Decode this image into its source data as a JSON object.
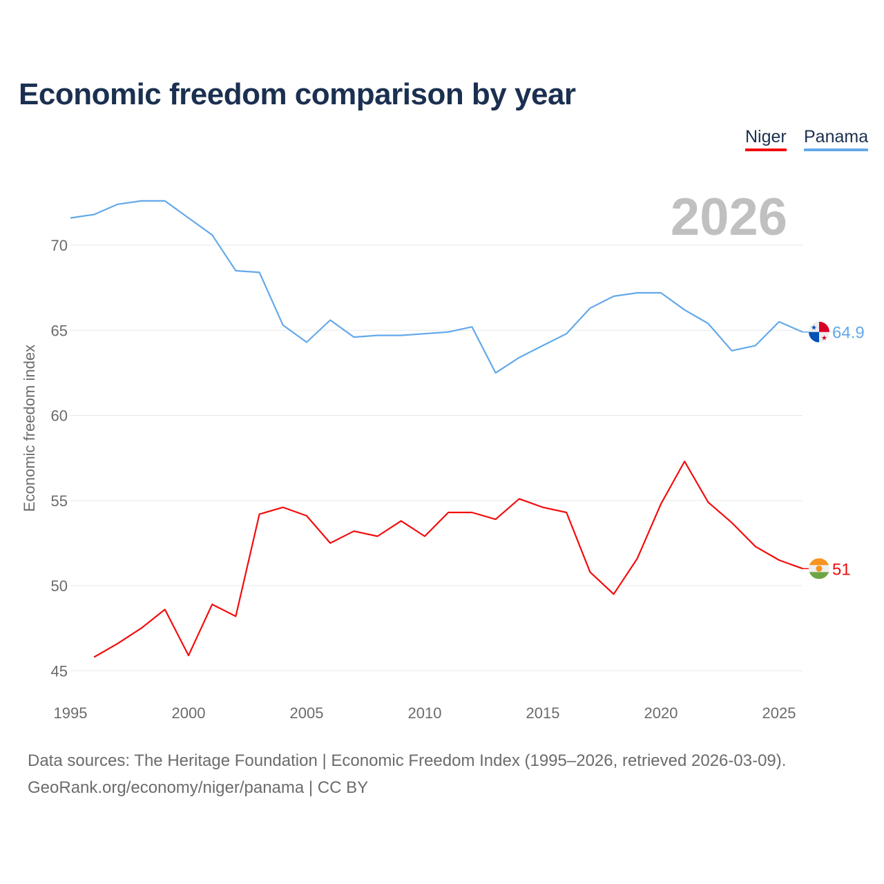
{
  "title": "Economic freedom comparison by year",
  "footer": {
    "line1": "Data sources: The Heritage Foundation | Economic Freedom Index (1995–2026, retrieved 2026-03-09).",
    "line2": "GeoRank.org/economy/niger/panama | CC BY"
  },
  "chart_data": {
    "type": "line",
    "title": "Economic freedom comparison by year",
    "xlabel": "",
    "ylabel": "Economic freedom index",
    "year_label": "2026",
    "xlim": [
      1995,
      2026
    ],
    "ylim": [
      45,
      72.8
    ],
    "xticks": [
      1995,
      2000,
      2005,
      2010,
      2015,
      2020,
      2025
    ],
    "yticks": [
      45,
      50,
      55,
      60,
      65,
      70
    ],
    "grid": true,
    "legend_position": "top-right",
    "series": [
      {
        "name": "Niger",
        "color": "#f20c0c",
        "end_label": "51",
        "flag": "niger-flag",
        "x": [
          1996,
          1997,
          1998,
          1999,
          2000,
          2001,
          2002,
          2003,
          2004,
          2005,
          2006,
          2007,
          2008,
          2009,
          2010,
          2011,
          2012,
          2013,
          2014,
          2015,
          2016,
          2017,
          2018,
          2019,
          2020,
          2021,
          2022,
          2023,
          2024,
          2025,
          2026
        ],
        "values": [
          45.8,
          46.6,
          47.5,
          48.6,
          45.9,
          48.9,
          48.2,
          54.2,
          54.6,
          54.1,
          52.5,
          53.2,
          52.9,
          53.8,
          52.9,
          54.3,
          54.3,
          53.9,
          55.1,
          54.6,
          54.3,
          50.8,
          49.5,
          51.6,
          54.8,
          57.3,
          54.9,
          53.7,
          52.3,
          51.5,
          51.0
        ]
      },
      {
        "name": "Panama",
        "color": "#63a8ea",
        "end_label": "64.9",
        "flag": "panama-flag",
        "x": [
          1995,
          1996,
          1997,
          1998,
          1999,
          2000,
          2001,
          2002,
          2003,
          2004,
          2005,
          2006,
          2007,
          2008,
          2009,
          2010,
          2011,
          2012,
          2013,
          2014,
          2015,
          2016,
          2017,
          2018,
          2019,
          2020,
          2021,
          2022,
          2023,
          2024,
          2025,
          2026
        ],
        "values": [
          71.6,
          71.8,
          72.4,
          72.6,
          72.6,
          71.6,
          70.6,
          68.5,
          68.4,
          65.3,
          64.3,
          65.6,
          64.6,
          64.7,
          64.7,
          64.8,
          64.9,
          65.2,
          62.5,
          63.4,
          64.1,
          64.8,
          66.3,
          67.0,
          67.2,
          67.2,
          66.2,
          65.4,
          63.8,
          64.1,
          65.5,
          64.9
        ]
      }
    ]
  }
}
